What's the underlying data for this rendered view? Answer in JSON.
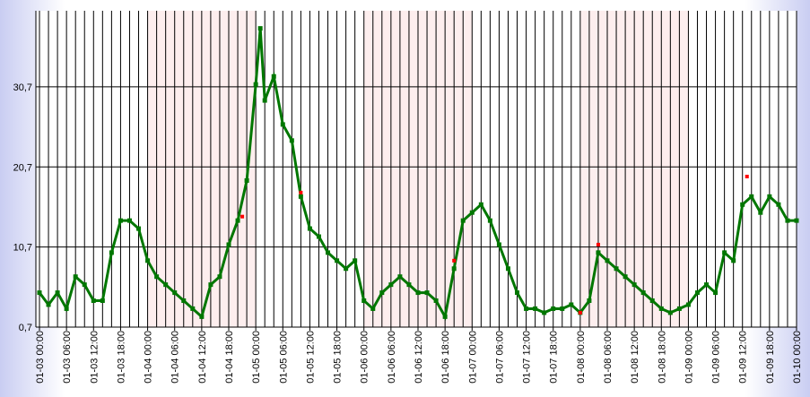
{
  "chart_data": {
    "type": "line",
    "color": "#007700",
    "marker": "square",
    "x": [
      "01-03 00:00",
      "01-03 02:00",
      "01-03 04:00",
      "01-03 06:00",
      "01-03 08:00",
      "01-03 10:00",
      "01-03 12:00",
      "01-03 14:00",
      "01-03 16:00",
      "01-03 18:00",
      "01-03 20:00",
      "01-03 22:00",
      "01-04 00:00",
      "01-04 02:00",
      "01-04 04:00",
      "01-04 06:00",
      "01-04 08:00",
      "01-04 10:00",
      "01-04 12:00",
      "01-04 14:00",
      "01-04 16:00",
      "01-04 18:00",
      "01-04 20:00",
      "01-04 22:00",
      "01-05 00:00",
      "01-05 01:00",
      "01-05 02:00",
      "01-05 04:00",
      "01-05 06:00",
      "01-05 08:00",
      "01-05 10:00",
      "01-05 12:00",
      "01-05 14:00",
      "01-05 16:00",
      "01-05 18:00",
      "01-05 20:00",
      "01-05 22:00",
      "01-06 00:00",
      "01-06 02:00",
      "01-06 04:00",
      "01-06 06:00",
      "01-06 08:00",
      "01-06 10:00",
      "01-06 12:00",
      "01-06 14:00",
      "01-06 16:00",
      "01-06 18:00",
      "01-06 20:00",
      "01-06 22:00",
      "01-07 00:00",
      "01-07 02:00",
      "01-07 04:00",
      "01-07 06:00",
      "01-07 08:00",
      "01-07 10:00",
      "01-07 12:00",
      "01-07 14:00",
      "01-07 16:00",
      "01-07 18:00",
      "01-07 20:00",
      "01-07 22:00",
      "01-08 00:00",
      "01-08 02:00",
      "01-08 04:00",
      "01-08 06:00",
      "01-08 08:00",
      "01-08 10:00",
      "01-08 12:00",
      "01-08 14:00",
      "01-08 16:00",
      "01-08 18:00",
      "01-08 20:00",
      "01-08 22:00",
      "01-09 00:00",
      "01-09 02:00",
      "01-09 04:00",
      "01-09 06:00",
      "01-09 08:00",
      "01-09 10:00",
      "01-09 12:00",
      "01-09 14:00",
      "01-09 16:00",
      "01-09 18:00",
      "01-09 20:00",
      "01-09 22:00",
      "01-10 00:00"
    ],
    "values": [
      5,
      3.5,
      5,
      3,
      7,
      6,
      4,
      4,
      10,
      14,
      14,
      13,
      9,
      7,
      6,
      5,
      4,
      3,
      2,
      6,
      7,
      11,
      14,
      19,
      31,
      38,
      29,
      32,
      26,
      24,
      17,
      13,
      12,
      10,
      9,
      8,
      9,
      4,
      3,
      5,
      6,
      7,
      6,
      5,
      5,
      4,
      2,
      8,
      14,
      15,
      16,
      14,
      11,
      8,
      5,
      3,
      3,
      2.5,
      3,
      3,
      3.5,
      2.5,
      4,
      10,
      9,
      8,
      7,
      6,
      5,
      4,
      3,
      2.5,
      3,
      3.5,
      5,
      6,
      5,
      10,
      9,
      16,
      17,
      15,
      17,
      16,
      14,
      14
    ],
    "highlight_points": {
      "color": "#ff0000",
      "x": [
        "01-04 21:00",
        "01-05 10:00",
        "01-06 20:00",
        "01-08 00:00",
        "01-08 04:00",
        "01-09 13:00"
      ],
      "values": [
        14.5,
        17.5,
        9,
        2.5,
        11,
        19.5
      ]
    },
    "xlim": [
      "01-03 00:00",
      "01-10 00:00"
    ],
    "xticks": [
      "01-03 00:00",
      "01-03 06:00",
      "01-03 12:00",
      "01-03 18:00",
      "01-04 00:00",
      "01-04 06:00",
      "01-04 12:00",
      "01-04 18:00",
      "01-05 00:00",
      "01-05 06:00",
      "01-05 12:00",
      "01-05 18:00",
      "01-06 00:00",
      "01-06 06:00",
      "01-06 12:00",
      "01-06 18:00",
      "01-07 00:00",
      "01-07 06:00",
      "01-07 12:00",
      "01-07 18:00",
      "01-08 00:00",
      "01-08 06:00",
      "01-08 12:00",
      "01-08 18:00",
      "01-09 00:00",
      "01-09 06:00",
      "01-09 12:00",
      "01-09 18:00",
      "01-10 00:00"
    ],
    "x_grid_hours": 2,
    "shaded_bands": [
      [
        "01-04 00:00",
        "01-05 00:00"
      ],
      [
        "01-06 00:00",
        "01-07 00:00"
      ],
      [
        "01-08 00:00",
        "01-09 00:00"
      ]
    ],
    "band_color": "#fdeeee",
    "ylim": [
      0.7,
      40.2
    ],
    "yticks": [
      {
        "value": 0.7,
        "label": "0,7"
      },
      {
        "value": 10.7,
        "label": "10,7"
      },
      {
        "value": 20.7,
        "label": "20,7"
      },
      {
        "value": 30.7,
        "label": "30,7"
      }
    ],
    "grid": true
  }
}
